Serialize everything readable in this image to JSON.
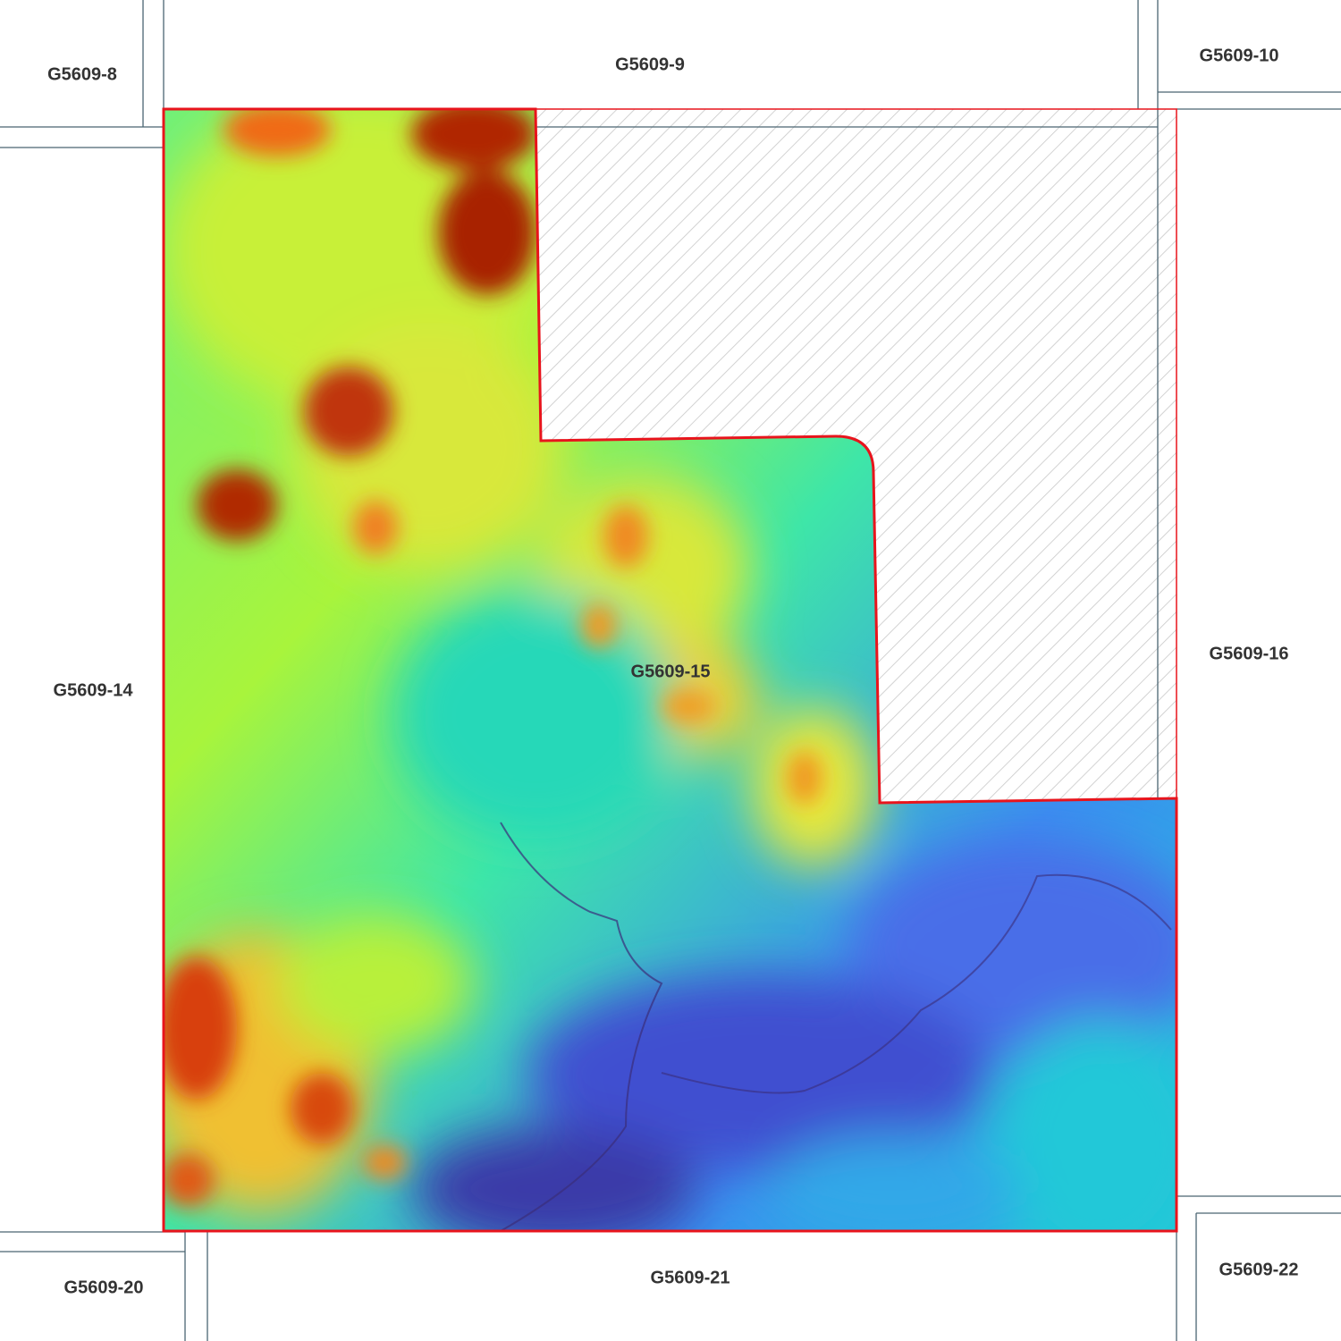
{
  "map": {
    "sheets": [
      {
        "id": "G5609-8",
        "label": "G5609-8"
      },
      {
        "id": "G5609-9",
        "label": "G5609-9"
      },
      {
        "id": "G5609-10",
        "label": "G5609-10"
      },
      {
        "id": "G5609-14",
        "label": "G5609-14"
      },
      {
        "id": "G5609-15",
        "label": "G5609-15"
      },
      {
        "id": "G5609-16",
        "label": "G5609-16"
      },
      {
        "id": "G5609-20",
        "label": "G5609-20"
      },
      {
        "id": "G5609-21",
        "label": "G5609-21"
      },
      {
        "id": "G5609-22",
        "label": "G5609-22"
      }
    ],
    "selected_sheet": "G5609-15",
    "layers": [
      "elevation-raster",
      "sheet-grid",
      "no-data-hatch",
      "selection-boundary"
    ],
    "colors": {
      "boundary": "#e8141c",
      "grid_line": "#4a6572",
      "hatch": "#c8c8c8",
      "label": "#333333",
      "elevation_ramp": [
        "#3a2d8f",
        "#4466e8",
        "#22c8d8",
        "#44f08a",
        "#b8f23a",
        "#f6c22e",
        "#f06a12",
        "#8a1a04"
      ]
    }
  }
}
